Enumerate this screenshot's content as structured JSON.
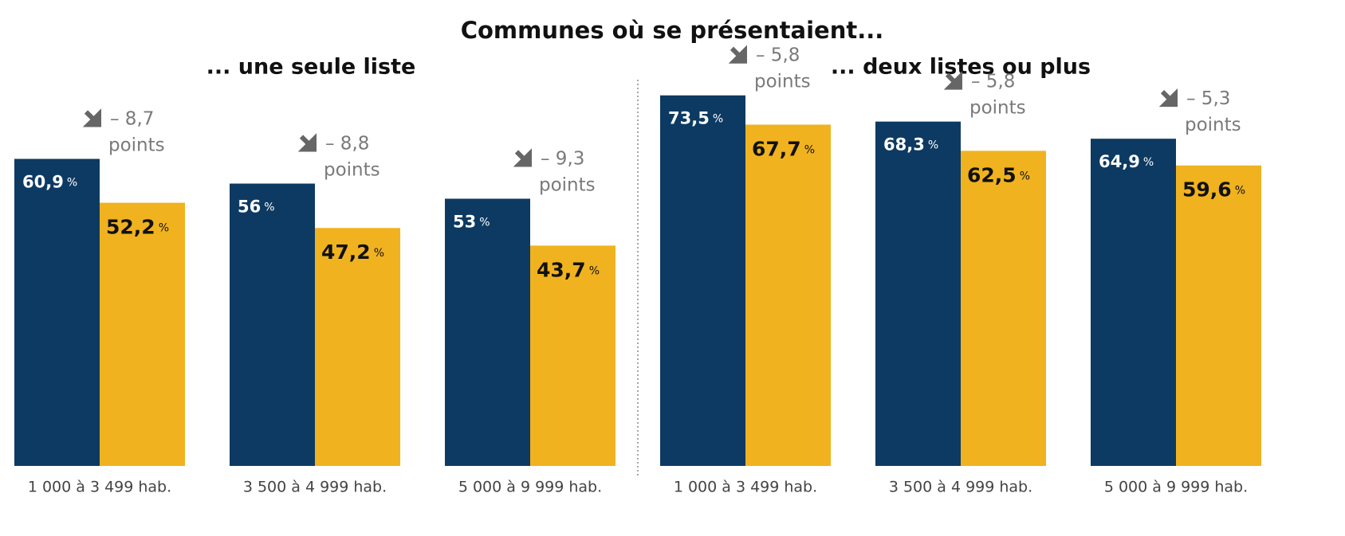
{
  "title": "Communes où se présentaient...",
  "chart_data": [
    {
      "type": "bar",
      "title": "... une seule liste",
      "categories": [
        "1 000 à 3 499 hab.",
        "3 500 à 4 999 hab.",
        "5 000 à 9 999 hab."
      ],
      "series": [
        {
          "color": "#0d3a62",
          "values": [
            60.9,
            56,
            53
          ],
          "value_labels": [
            "60,9 %",
            "56 %",
            "53 %"
          ]
        },
        {
          "color": "#f0b21f",
          "values": [
            52.2,
            47.2,
            43.7
          ],
          "value_labels": [
            "52,2 %",
            "47,2 %",
            "43,7 %"
          ]
        }
      ],
      "annotations": [
        "– 8,7 points",
        "– 8,8 points",
        "– 9,3 points"
      ]
    },
    {
      "type": "bar",
      "title": "... deux listes ou plus",
      "categories": [
        "1 000 à 3 499 hab.",
        "3 500 à 4 999 hab.",
        "5 000 à 9 999 hab."
      ],
      "series": [
        {
          "color": "#0d3a62",
          "values": [
            73.5,
            68.3,
            64.9
          ],
          "value_labels": [
            "73,5 %",
            "68,3 %",
            "64,9 %"
          ]
        },
        {
          "color": "#f0b21f",
          "values": [
            67.7,
            62.5,
            59.6
          ],
          "value_labels": [
            "67,7 %",
            "62,5 %",
            "59,6 %"
          ]
        }
      ],
      "annotations": [
        "– 5,8 points",
        "– 5,8 points",
        "– 5,3 points"
      ]
    }
  ]
}
